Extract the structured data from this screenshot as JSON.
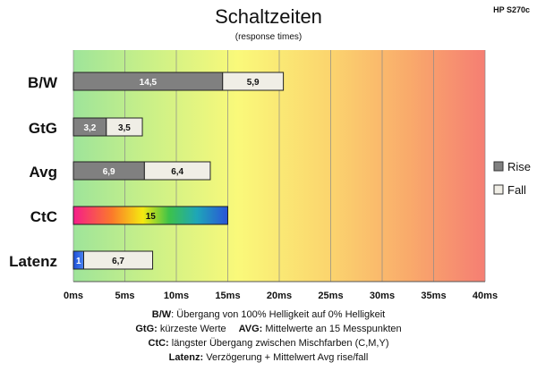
{
  "header": {
    "title": "Schaltzeiten",
    "subtitle": "(response times)",
    "model": "HP S270c"
  },
  "chart_data": {
    "type": "bar",
    "orientation": "horizontal",
    "stacked": true,
    "categories": [
      "B/W",
      "GtG",
      "Avg",
      "CtC",
      "Latenz"
    ],
    "series": [
      {
        "name": "Rise",
        "color": "#808080",
        "values": [
          14.5,
          3.2,
          6.9,
          15,
          1
        ],
        "labels": [
          "14,5",
          "3,2",
          "6,9",
          "15",
          "1"
        ]
      },
      {
        "name": "Fall",
        "color": "#f0eee6",
        "values": [
          5.9,
          3.5,
          6.4,
          0,
          6.7
        ],
        "labels": [
          "5,9",
          "3,5",
          "6,4",
          "",
          "6,7"
        ]
      }
    ],
    "xlim": [
      0,
      40
    ],
    "xticks": [
      0,
      5,
      10,
      15,
      20,
      25,
      30,
      35,
      40
    ],
    "xtick_labels": [
      "0ms",
      "5ms",
      "10ms",
      "15ms",
      "20ms",
      "25ms",
      "30ms",
      "35ms",
      "40ms"
    ],
    "grid": true,
    "legend_position": "right",
    "background": "gradient green-yellow-red",
    "special_bars": {
      "CtC": "rainbow gradient",
      "Latenz": "blue first segment"
    }
  },
  "footer": {
    "line1_key": "B/W",
    "line1_text": ":  Übergang von 100% Helligkeit auf 0% Helligkeit",
    "line2_key": "GtG:",
    "line2_text": " kürzeste  Werte",
    "line2_key2": "AVG:",
    "line2_text2": " Mittelwerte  an 15 Messpunkten",
    "line3_key": "CtC:",
    "line3_text": " längster Übergang  zwischen Mischfarben (C,M,Y)",
    "line4_key": "Latenz:",
    "line4_text": " Verzögerung  + Mittelwert Avg rise/fall"
  }
}
